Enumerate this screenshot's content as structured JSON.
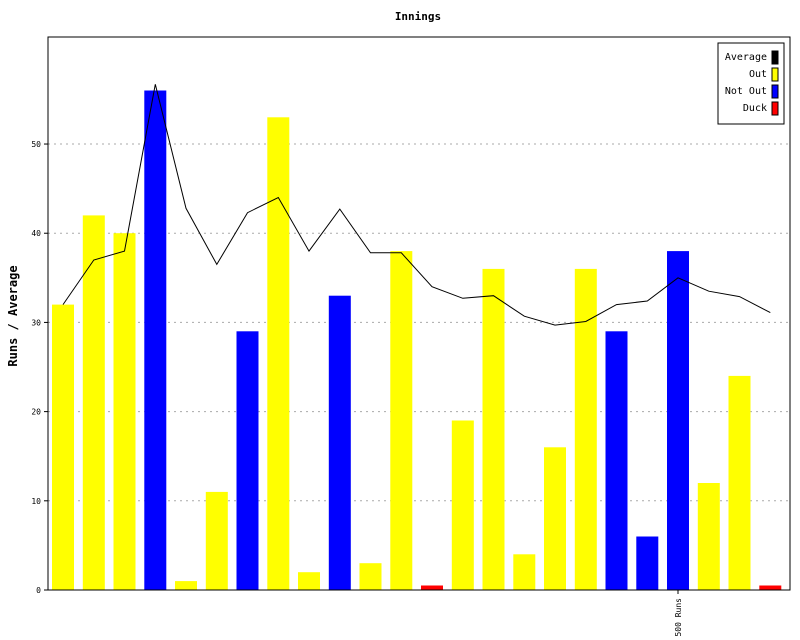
{
  "chart_data": {
    "type": "bar",
    "title": "Innings",
    "ylabel": "Runs / Average",
    "xlabel": "",
    "ylim": [
      0,
      62
    ],
    "yticks": [
      0,
      10,
      20,
      30,
      40,
      50
    ],
    "grid": "horizontal-dashed",
    "legend_position": "top-right",
    "legend": [
      {
        "name": "Average",
        "color": "#000000"
      },
      {
        "name": "Out",
        "color": "#ffff00"
      },
      {
        "name": "Not Out",
        "color": "#0000ff"
      },
      {
        "name": "Duck",
        "color": "#ff0000"
      }
    ],
    "innings": [
      {
        "runs": 32,
        "type": "Out"
      },
      {
        "runs": 42,
        "type": "Out"
      },
      {
        "runs": 40,
        "type": "Out"
      },
      {
        "runs": 56,
        "type": "Not Out"
      },
      {
        "runs": 1,
        "type": "Out"
      },
      {
        "runs": 11,
        "type": "Out"
      },
      {
        "runs": 29,
        "type": "Not Out"
      },
      {
        "runs": 53,
        "type": "Out"
      },
      {
        "runs": 2,
        "type": "Out"
      },
      {
        "runs": 33,
        "type": "Not Out"
      },
      {
        "runs": 3,
        "type": "Out"
      },
      {
        "runs": 38,
        "type": "Out"
      },
      {
        "runs": 0,
        "type": "Duck"
      },
      {
        "runs": 19,
        "type": "Out"
      },
      {
        "runs": 36,
        "type": "Out"
      },
      {
        "runs": 4,
        "type": "Out"
      },
      {
        "runs": 16,
        "type": "Out"
      },
      {
        "runs": 36,
        "type": "Out"
      },
      {
        "runs": 29,
        "type": "Not Out"
      },
      {
        "runs": 6,
        "type": "Not Out"
      },
      {
        "runs": 38,
        "type": "Not Out"
      },
      {
        "runs": 12,
        "type": "Out"
      },
      {
        "runs": 24,
        "type": "Out"
      },
      {
        "runs": 0,
        "type": "Duck"
      }
    ],
    "average": [
      32,
      37,
      38,
      56.7,
      42.8,
      36.5,
      42.3,
      44,
      38,
      42.7,
      37.8,
      37.8,
      34,
      32.7,
      33,
      30.7,
      29.7,
      30.1,
      32,
      32.4,
      35,
      33.5,
      32.9,
      31.1
    ],
    "markers": [
      {
        "index": 20,
        "label": "500 Runs"
      }
    ]
  }
}
